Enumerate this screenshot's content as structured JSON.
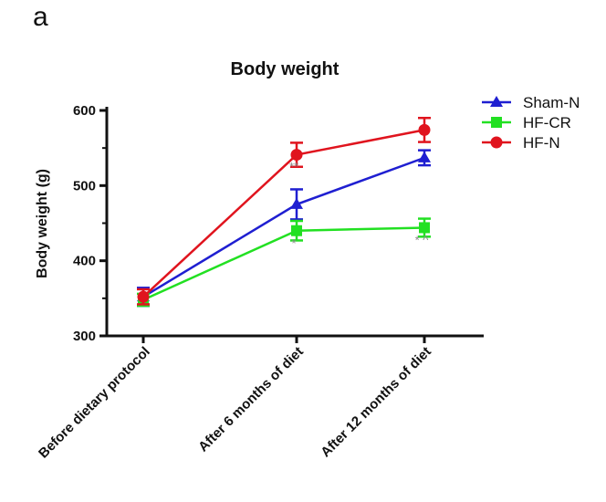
{
  "panel_label": "a",
  "chart_data": {
    "type": "line",
    "title": "Body weight",
    "xlabel": "",
    "ylabel": "Body weight (g)",
    "ylim": [
      300,
      600
    ],
    "yticks": [
      "300",
      "400",
      "500",
      "600"
    ],
    "categories": [
      "Before dietary protocol",
      "After 6 months of diet",
      "After 12 months of diet"
    ],
    "grid": false,
    "legend_position": "top-right",
    "series": [
      {
        "name": "Sham-N",
        "color": "#1f1fd1",
        "marker": "triangle",
        "values": [
          352,
          475,
          537
        ],
        "errors": [
          12,
          20,
          10
        ]
      },
      {
        "name": "HF-CR",
        "color": "#22e022",
        "marker": "square",
        "values": [
          348,
          440,
          444
        ],
        "errors": [
          8,
          13,
          12
        ]
      },
      {
        "name": "HF-N",
        "color": "#e0141e",
        "marker": "circle",
        "values": [
          352,
          541,
          574
        ],
        "errors": [
          10,
          16,
          16
        ]
      }
    ],
    "annotations": [
      {
        "category_index": 1,
        "y": 520,
        "text": "**"
      },
      {
        "category_index": 1,
        "y": 418,
        "text": "*"
      },
      {
        "category_index": 2,
        "y": 422,
        "text": "* ^"
      }
    ]
  }
}
